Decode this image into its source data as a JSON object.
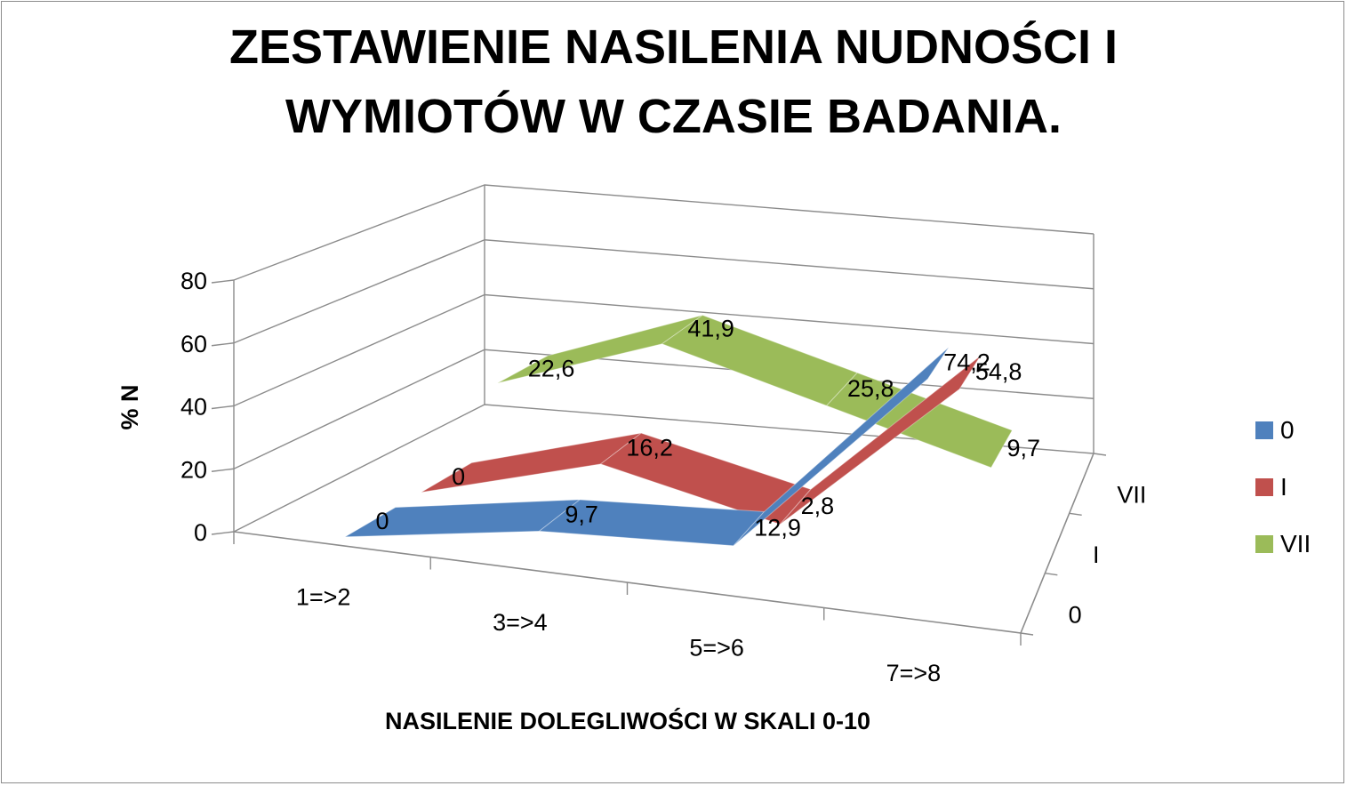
{
  "chart_data": {
    "type": "line",
    "title_lines": [
      "ZESTAWIENIE NASILENIA NUDNOŚCI I",
      "WYMIOTÓW W CZASIE BADANIA."
    ],
    "xlabel": "NASILENIE DOLEGLIWOŚCI W SKALI 0-10",
    "ylabel": "% N",
    "ylim": [
      0,
      80
    ],
    "yticks": [
      "0",
      "20",
      "40",
      "60",
      "80"
    ],
    "categories": [
      "1=>2",
      "3=>4",
      "5=>6",
      "7=>8"
    ],
    "depth_labels": [
      "0",
      "I",
      "VII"
    ],
    "series": [
      {
        "name": "0",
        "color": "#4f81bd",
        "values": [
          0,
          9.7,
          12.9,
          74.2
        ],
        "labels": [
          "0",
          "9,7",
          "12,9",
          "74,2"
        ]
      },
      {
        "name": "I",
        "color": "#c0504d",
        "values": [
          0,
          16.2,
          2.8,
          54.8
        ],
        "labels": [
          "0",
          "16,2",
          "2,8",
          "54,8"
        ]
      },
      {
        "name": "VII",
        "color": "#9bbb59",
        "values": [
          22.6,
          41.9,
          25.8,
          9.7
        ],
        "labels": [
          "22,6",
          "41,9",
          "25,8",
          "9,7"
        ]
      }
    ],
    "legend_position": "right",
    "grid": true
  }
}
